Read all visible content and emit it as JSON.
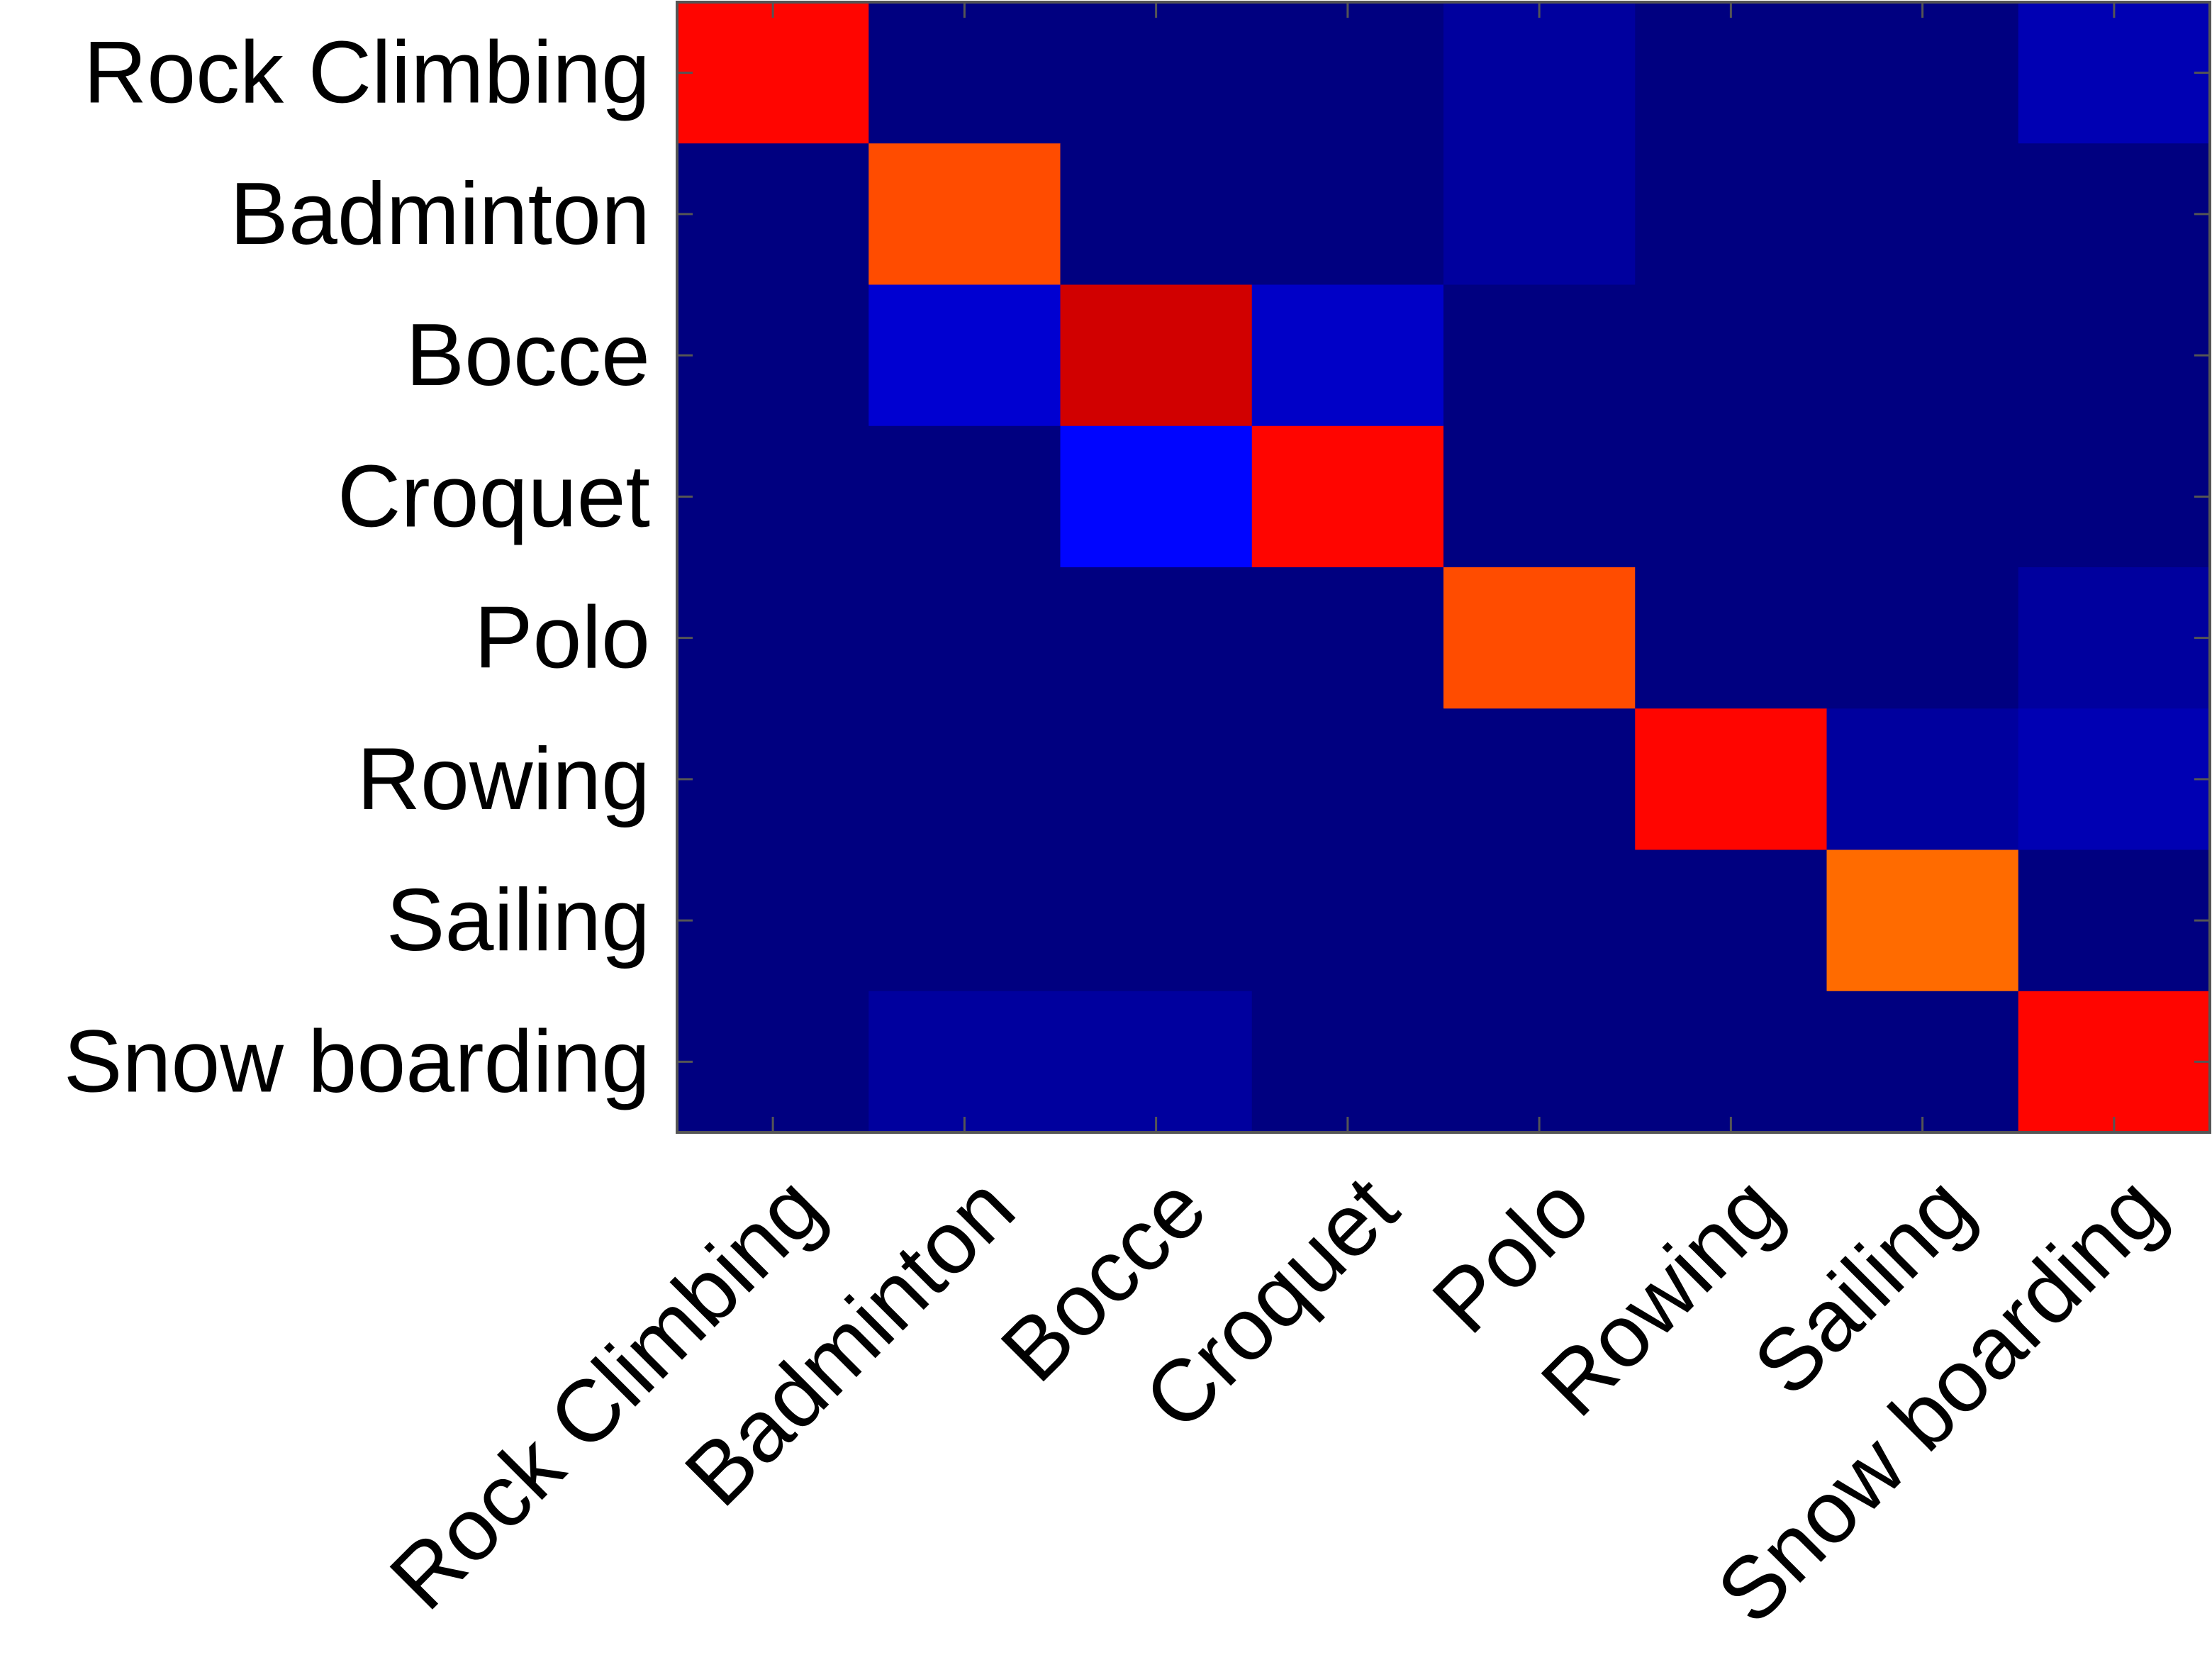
{
  "chart_data": {
    "type": "heatmap",
    "title": "",
    "xlabel": "",
    "ylabel": "",
    "grid": false,
    "legend": "none",
    "colorscale": "jet",
    "value_range": [
      0,
      1
    ],
    "rows": [
      "Rock Climbing",
      "Badminton",
      "Bocce",
      "Croquet",
      "Polo",
      "Rowing",
      "Sailing",
      "Snow boarding"
    ],
    "columns": [
      "Rock Climbing",
      "Badminton",
      "Bocce",
      "Croquet",
      "Polo",
      "Rowing",
      "Sailing",
      "Snow boarding"
    ],
    "values": [
      [
        0.87,
        0.0,
        0.0,
        0.0,
        0.03,
        0.0,
        0.0,
        0.05
      ],
      [
        0.0,
        0.8,
        0.0,
        0.0,
        0.03,
        0.0,
        0.0,
        0.0
      ],
      [
        0.0,
        0.08,
        0.92,
        0.07,
        0.0,
        0.0,
        0.0,
        0.0
      ],
      [
        0.0,
        0.0,
        0.13,
        0.87,
        0.0,
        0.0,
        0.0,
        0.0
      ],
      [
        0.0,
        0.0,
        0.0,
        0.0,
        0.8,
        0.0,
        0.0,
        0.03
      ],
      [
        0.0,
        0.0,
        0.0,
        0.0,
        0.0,
        0.87,
        0.03,
        0.05
      ],
      [
        0.0,
        0.0,
        0.0,
        0.0,
        0.0,
        0.0,
        0.77,
        0.0
      ],
      [
        0.0,
        0.03,
        0.03,
        0.0,
        0.0,
        0.0,
        0.0,
        0.87
      ]
    ]
  }
}
